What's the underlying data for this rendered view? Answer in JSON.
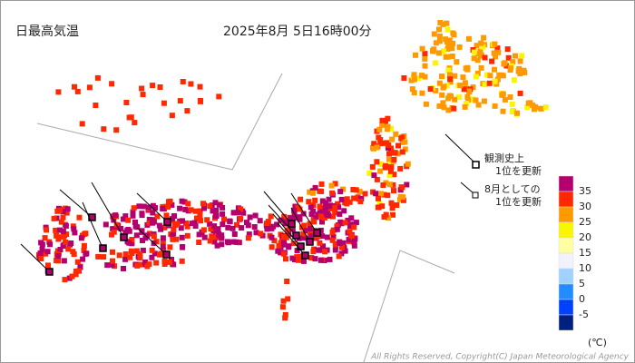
{
  "header": {
    "title": "日最高気温",
    "datetime": "2025年8月 5日16時00分"
  },
  "legend": {
    "record_all": [
      "観測史上",
      "1位を更新"
    ],
    "record_month": [
      "8月としての",
      "1位を更新"
    ],
    "scale": {
      "labels": [
        "35",
        "30",
        "25",
        "20",
        "15",
        "10",
        "5",
        "0",
        "-5"
      ],
      "colors": [
        "#b4006e",
        "#ff2800",
        "#ff9900",
        "#faf500",
        "#ffffa0",
        "#f2f2ff",
        "#a0d2ff",
        "#218cff",
        "#0041ff",
        "#002080"
      ],
      "unit": "(℃)"
    }
  },
  "copyright": "All Rights Reserved, Copyright(C) Japan Meteorological Agency"
}
